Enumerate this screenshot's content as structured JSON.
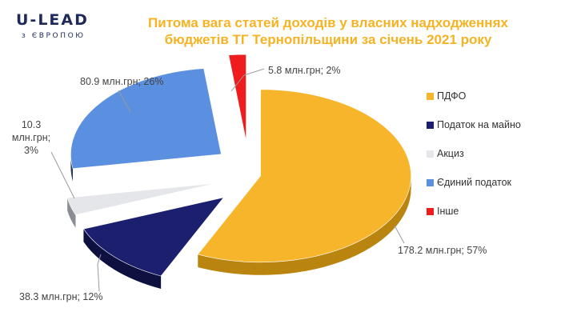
{
  "logo": {
    "main": "U-LEAD",
    "sub": "з ЄВРОПОЮ"
  },
  "title": {
    "line1": "Питома вага статей доходів у власних надходженнях",
    "line2": "бюджетів ТГ Тернопільщини за січень 2021 року"
  },
  "chart_data": {
    "type": "pie",
    "title": "Питома вага статей доходів у власних надходженнях бюджетів ТГ Тернопільщини за січень 2021 року",
    "slices": [
      {
        "name": "ПДФО",
        "value": 178.2,
        "percent": 57,
        "color": "#f7b52b",
        "side_color": "#b9850f",
        "label": "178.2 млн.грн; 57%"
      },
      {
        "name": "Податок на майно",
        "value": 38.3,
        "percent": 12,
        "color": "#1b1f6e",
        "side_color": "#0e1140",
        "label": "38.3 млн.грн; 12%"
      },
      {
        "name": "Акциз",
        "value": 10.3,
        "percent": 3,
        "color": "#e4e6e9",
        "side_color": "#8a8d91",
        "label": "10.3 млн.грн; 3%"
      },
      {
        "name": "Єдиний податок",
        "value": 80.9,
        "percent": 26,
        "color": "#5b8fdf",
        "side_color": "#2a3a5e",
        "label": "80.9 млн.грн; 26%"
      },
      {
        "name": "Інше",
        "value": 5.8,
        "percent": 2,
        "color": "#ee1c1c",
        "side_color": "#8f0d0d",
        "label": "5.8 млн.грн; 2%"
      }
    ],
    "legend_position": "right"
  }
}
